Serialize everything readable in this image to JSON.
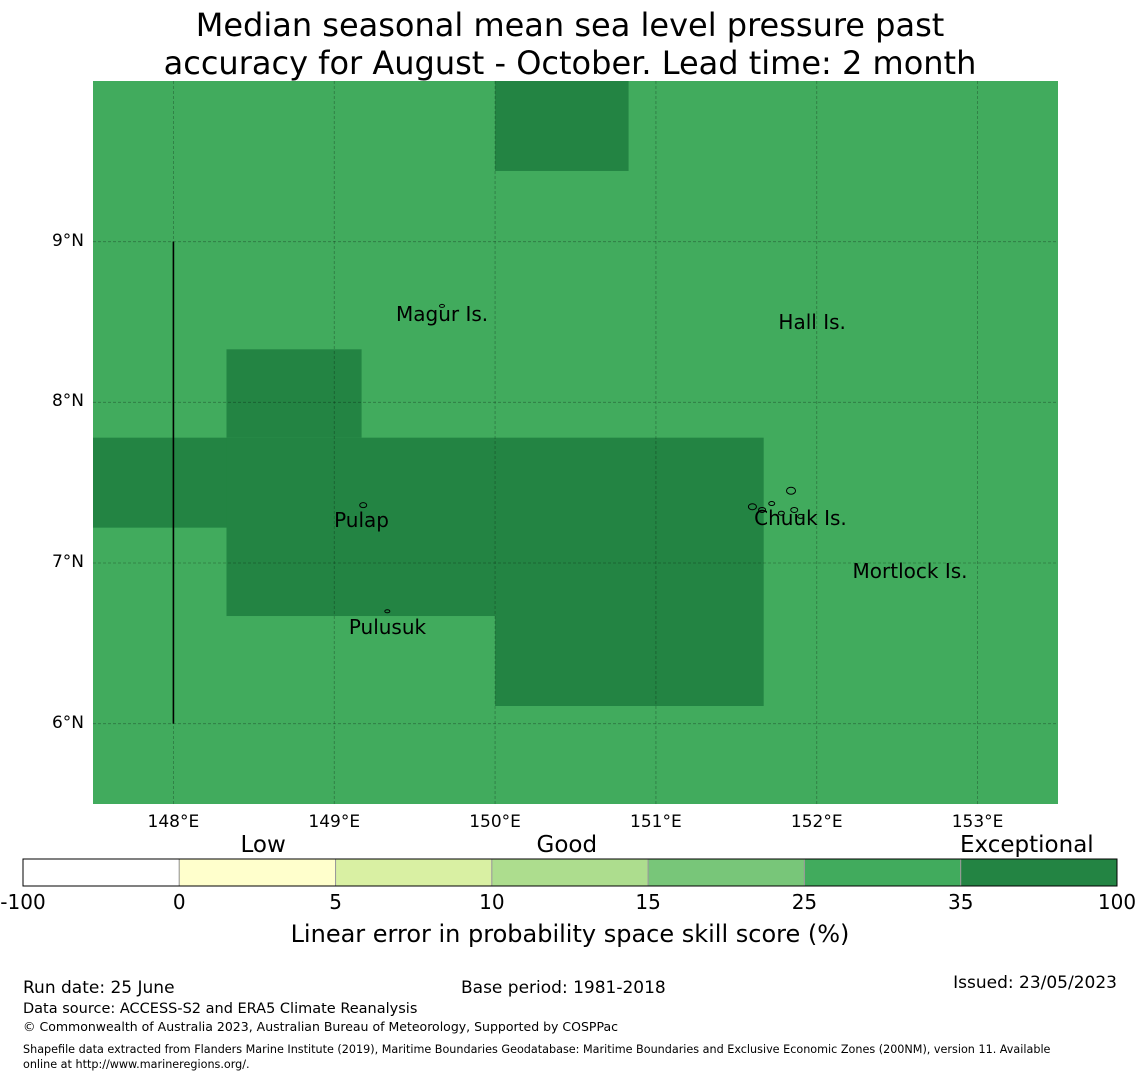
{
  "title_line1": "Median seasonal mean sea level pressure past",
  "title_line2": "accuracy for August - October. Lead time: 2 month",
  "map": {
    "lon_range": [
      147.5,
      153.5
    ],
    "lat_range": [
      5.5,
      10.0
    ],
    "lat_ticks": [
      {
        "value": 9,
        "label": "9°N"
      },
      {
        "value": 8,
        "label": "8°N"
      },
      {
        "value": 7,
        "label": "7°N"
      },
      {
        "value": 6,
        "label": "6°N"
      }
    ],
    "lon_ticks": [
      {
        "value": 148,
        "label": "148°E"
      },
      {
        "value": 149,
        "label": "149°E"
      },
      {
        "value": 150,
        "label": "150°E"
      },
      {
        "value": 151,
        "label": "151°E"
      },
      {
        "value": 152,
        "label": "152°E"
      },
      {
        "value": 153,
        "label": "153°E"
      }
    ],
    "base_category": "25-35",
    "exceptional_cells": [
      {
        "lon": [
          150.0,
          150.83
        ],
        "lat": [
          9.44,
          10.0
        ]
      },
      {
        "lon": [
          148.33,
          149.17
        ],
        "lat": [
          7.78,
          8.33
        ]
      },
      {
        "lon": [
          147.5,
          148.33
        ],
        "lat": [
          7.22,
          7.78
        ]
      },
      {
        "lon": [
          148.33,
          150.0
        ],
        "lat": [
          6.67,
          7.78
        ]
      },
      {
        "lon": [
          150.0,
          151.67
        ],
        "lat": [
          6.11,
          7.78
        ]
      }
    ],
    "boundary_line": {
      "lon": 148.0,
      "lat": [
        6.0,
        9.0
      ]
    },
    "places": [
      {
        "name": "Magur Is.",
        "lon": 149.67,
        "lat": 8.55
      },
      {
        "name": "Hall Is.",
        "lon": 151.97,
        "lat": 8.5
      },
      {
        "name": "Pulap",
        "lon": 149.17,
        "lat": 7.27
      },
      {
        "name": "Chuuk Is.",
        "lon": 151.9,
        "lat": 7.28
      },
      {
        "name": "Mortlock Is.",
        "lon": 152.58,
        "lat": 6.95
      },
      {
        "name": "Pulusuk",
        "lon": 149.33,
        "lat": 6.6
      }
    ]
  },
  "colorbar": {
    "categories": [
      "Low",
      "Good",
      "Exceptional"
    ],
    "ticks": [
      "-100",
      "0",
      "5",
      "10",
      "15",
      "25",
      "35",
      "100"
    ],
    "colors": [
      "#ffffff",
      "#ffffcc",
      "#d9f0a3",
      "#addd8e",
      "#78c679",
      "#41ab5d",
      "#238443"
    ],
    "title": "Linear error in probability space skill score (%)"
  },
  "footer": {
    "run_date": "Run date: 25 June",
    "base_period": "Base period: 1981-2018",
    "issued": "Issued: 23/05/2023",
    "data_source": "Data source: ACCESS-S2 and ERA5 Climate Reanalysis",
    "copyright": "© Commonwealth of Australia 2023, Australian Bureau of Meteorology, Supported by COSPPac",
    "shapefile_line1": "Shapefile data extracted from Flanders Marine Institute (2019), Maritime Boundaries Geodatabase: Maritime Boundaries and Exclusive Economic Zones (200NM), version 11. Available",
    "shapefile_line2": "online at http://www.marineregions.org/."
  }
}
